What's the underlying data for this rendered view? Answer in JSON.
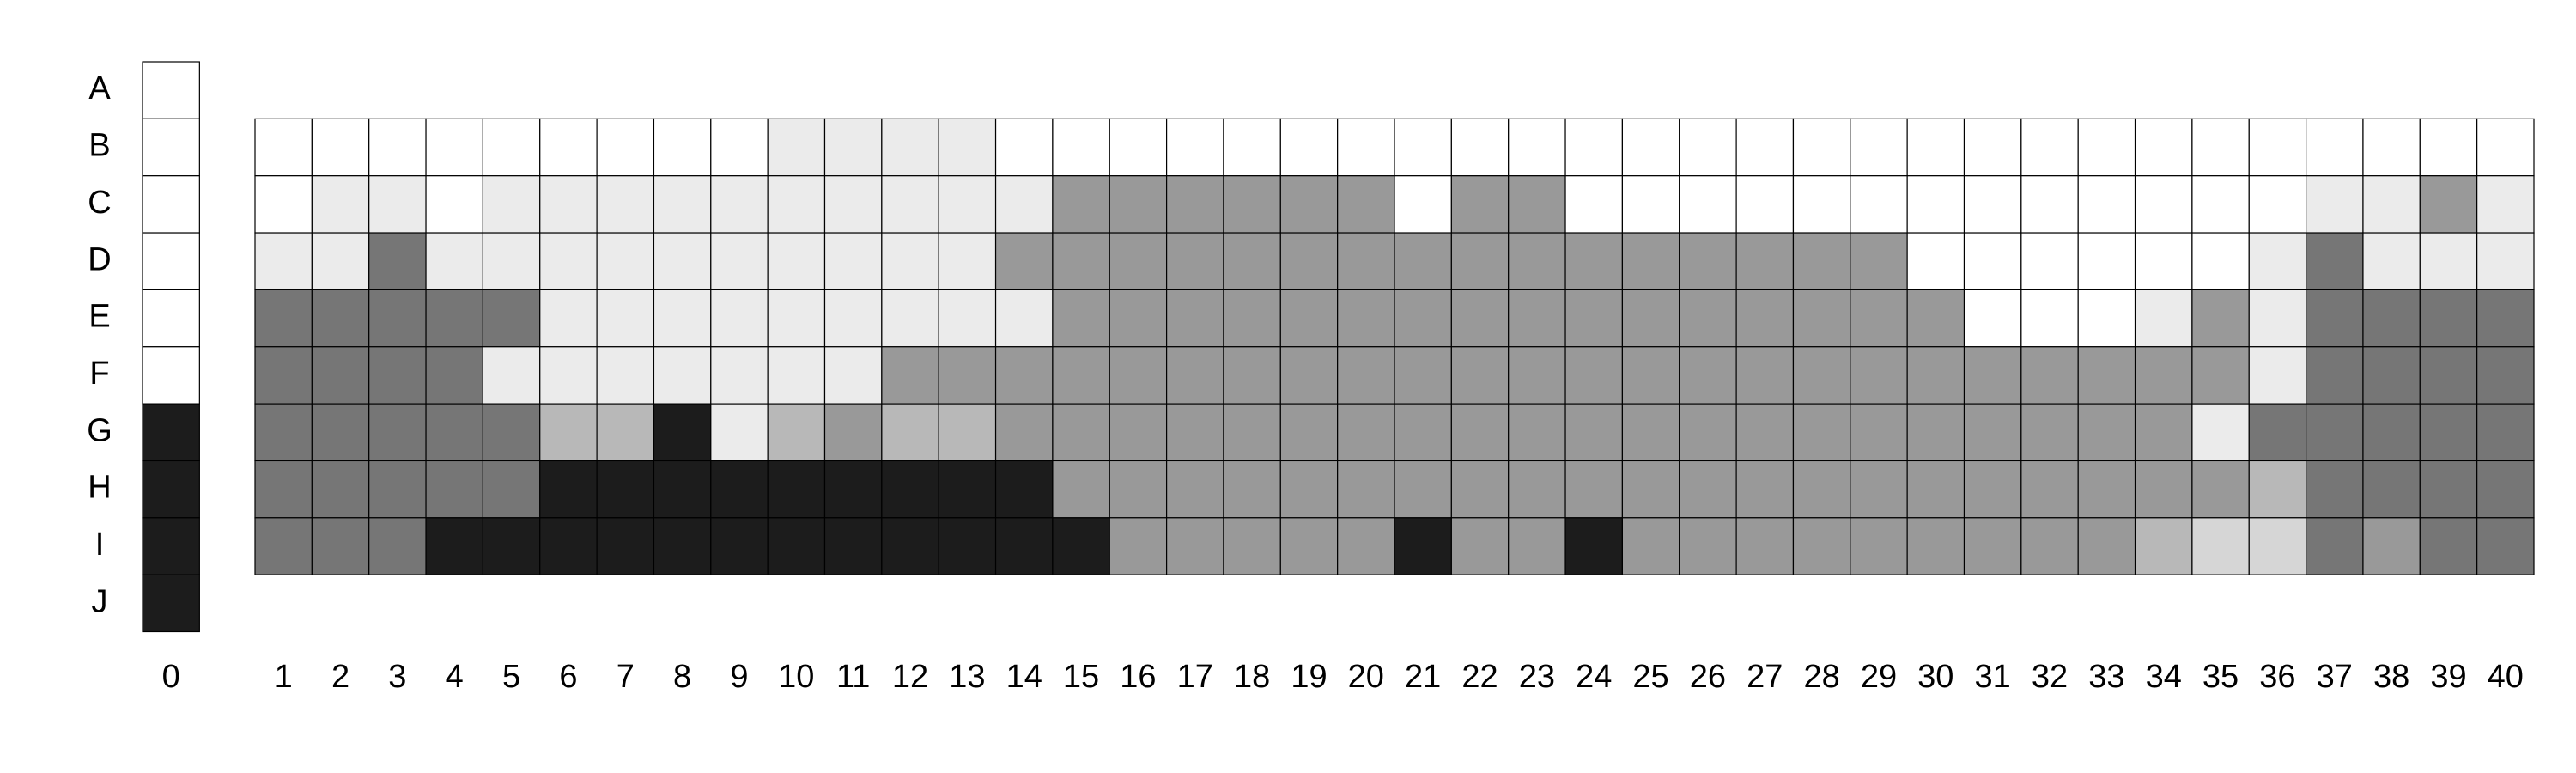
{
  "chart_data": {
    "type": "heatmap",
    "row_labels": [
      "A",
      "B",
      "C",
      "D",
      "E",
      "F",
      "G",
      "H",
      "I",
      "J"
    ],
    "col_labels": [
      "1",
      "2",
      "3",
      "4",
      "5",
      "6",
      "7",
      "8",
      "9",
      "10",
      "11",
      "12",
      "13",
      "14",
      "15",
      "16",
      "17",
      "18",
      "19",
      "20",
      "21",
      "22",
      "23",
      "24",
      "25",
      "26",
      "27",
      "28",
      "29",
      "30",
      "31",
      "32",
      "33",
      "34",
      "35",
      "36",
      "37",
      "38",
      "39",
      "40"
    ],
    "reference_column": {
      "label": "0",
      "rows": [
        "A",
        "B",
        "C",
        "D",
        "E",
        "F",
        "G",
        "H",
        "I",
        "J"
      ],
      "values": [
        0,
        0,
        0,
        0,
        0,
        0,
        5,
        5,
        5,
        5
      ]
    },
    "main_grid": {
      "rows": [
        "B",
        "C",
        "D",
        "E",
        "F",
        "G",
        "H",
        "I"
      ],
      "values": [
        [
          0,
          0,
          0,
          0,
          0,
          0,
          0,
          0,
          0,
          1,
          1,
          1,
          1,
          0,
          0,
          0,
          0,
          0,
          0,
          0,
          0,
          0,
          0,
          0,
          0,
          0,
          0,
          0,
          0,
          0,
          0,
          0,
          0,
          0,
          0,
          0,
          0,
          0,
          0,
          0
        ],
        [
          0,
          1,
          1,
          0,
          1,
          1,
          1,
          1,
          1,
          1,
          1,
          1,
          1,
          1,
          3,
          3,
          3,
          3,
          3,
          3,
          0,
          3,
          3,
          0,
          0,
          0,
          0,
          0,
          0,
          0,
          0,
          0,
          0,
          0,
          0,
          0,
          1,
          1,
          3,
          1
        ],
        [
          1,
          1,
          4,
          1,
          1,
          1,
          1,
          1,
          1,
          1,
          1,
          1,
          1,
          3,
          3,
          3,
          3,
          3,
          3,
          3,
          3,
          3,
          3,
          3,
          3,
          3,
          3,
          3,
          3,
          0,
          0,
          0,
          0,
          0,
          0,
          1,
          4,
          1,
          1,
          1
        ],
        [
          4,
          4,
          4,
          4,
          4,
          1,
          1,
          1,
          1,
          1,
          1,
          1,
          1,
          1,
          3,
          3,
          3,
          3,
          3,
          3,
          3,
          3,
          3,
          3,
          3,
          3,
          3,
          3,
          3,
          3,
          0,
          0,
          0,
          1,
          3,
          1,
          4,
          4,
          4,
          4
        ],
        [
          4,
          4,
          4,
          4,
          1,
          1,
          1,
          1,
          1,
          1,
          1,
          3,
          3,
          3,
          3,
          3,
          3,
          3,
          3,
          3,
          3,
          3,
          3,
          3,
          3,
          3,
          3,
          3,
          3,
          3,
          3,
          3,
          3,
          3,
          3,
          1,
          4,
          4,
          4,
          4
        ],
        [
          4,
          4,
          4,
          4,
          4,
          2,
          2,
          5,
          1,
          2,
          3,
          2,
          2,
          3,
          3,
          3,
          3,
          3,
          3,
          3,
          3,
          3,
          3,
          3,
          3,
          3,
          3,
          3,
          3,
          3,
          3,
          3,
          3,
          3,
          1,
          4,
          4,
          4,
          4,
          4
        ],
        [
          4,
          4,
          4,
          4,
          4,
          5,
          5,
          5,
          5,
          5,
          5,
          5,
          5,
          5,
          3,
          3,
          3,
          3,
          3,
          3,
          3,
          3,
          3,
          3,
          3,
          3,
          3,
          3,
          3,
          3,
          3,
          3,
          3,
          3,
          3,
          2,
          4,
          4,
          4,
          4
        ],
        [
          4,
          4,
          4,
          5,
          5,
          5,
          5,
          5,
          5,
          5,
          5,
          5,
          5,
          5,
          5,
          3,
          3,
          3,
          3,
          3,
          5,
          3,
          3,
          5,
          3,
          3,
          3,
          3,
          3,
          3,
          3,
          3,
          3,
          2,
          6,
          6,
          4,
          3,
          4,
          4
        ]
      ]
    },
    "level_colors": [
      "#ffffff",
      "#ebebeb",
      "#b8b8b8",
      "#999999",
      "#767676",
      "#1c1c1c",
      "#d6d6d6"
    ],
    "grid": true,
    "title": "",
    "xlabel": "",
    "ylabel": ""
  }
}
